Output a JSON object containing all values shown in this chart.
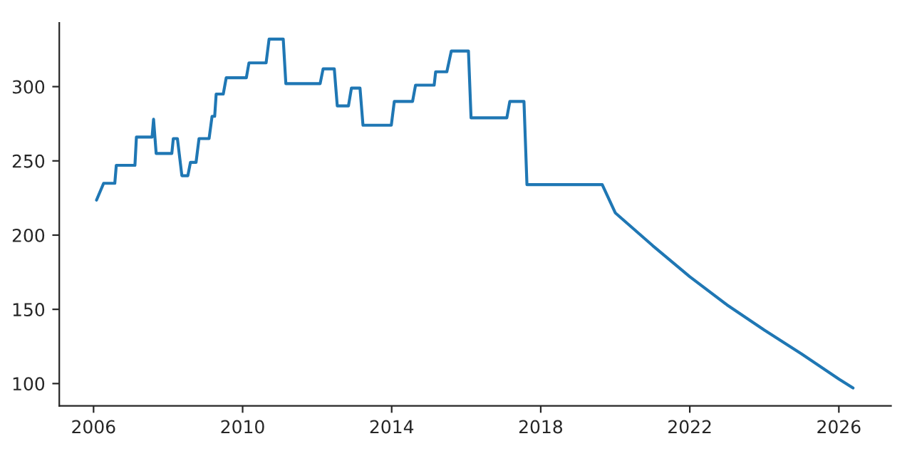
{
  "chart_data": {
    "type": "line",
    "xlim": [
      2005.08,
      2027.4
    ],
    "ylim": [
      85,
      343
    ],
    "xticks": [
      2006,
      2010,
      2014,
      2018,
      2022,
      2026
    ],
    "yticks": [
      100,
      150,
      200,
      250,
      300
    ],
    "grid": false,
    "line_style": "solid",
    "series": [
      {
        "color": "#1f77b4",
        "x": [
          2006.08,
          2006.27,
          2006.57,
          2006.61,
          2007.11,
          2007.15,
          2007.57,
          2007.61,
          2007.68,
          2008.1,
          2008.14,
          2008.25,
          2008.37,
          2008.53,
          2008.6,
          2008.75,
          2008.83,
          2009.1,
          2009.18,
          2009.25,
          2009.29,
          2009.48,
          2009.56,
          2010.1,
          2010.17,
          2010.63,
          2010.71,
          2011.09,
          2011.16,
          2012.08,
          2012.16,
          2012.46,
          2012.54,
          2012.84,
          2012.92,
          2013.15,
          2013.23,
          2013.99,
          2014.07,
          2014.56,
          2014.64,
          2015.14,
          2015.18,
          2015.48,
          2015.6,
          2016.06,
          2016.13,
          2017.09,
          2017.17,
          2017.55,
          2017.63,
          2019.65,
          2020.0,
          2021.0,
          2022.0,
          2023.0,
          2024.0,
          2025.0,
          2026.0,
          2026.38
        ],
        "values": [
          223.6,
          234.9,
          234.9,
          247,
          247,
          266,
          266,
          278,
          255,
          255,
          265,
          265,
          240,
          240,
          249,
          249,
          265,
          265,
          280,
          280,
          295,
          295,
          306,
          306,
          316,
          316,
          332,
          332,
          302,
          302,
          312,
          312,
          287,
          287,
          299,
          299,
          274,
          274,
          290,
          290,
          301,
          301,
          310,
          310,
          324,
          324,
          279,
          279,
          290,
          290,
          234,
          234,
          215,
          193,
          172,
          153,
          136,
          120,
          103,
          97
        ]
      }
    ]
  }
}
